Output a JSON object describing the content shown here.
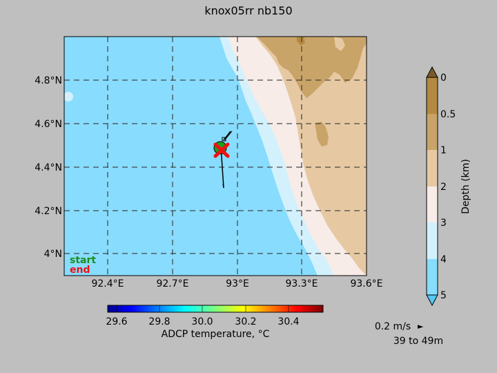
{
  "chart_data": {
    "type": "map",
    "title": "knox05rr nb150",
    "x_ticks": [
      "92.4°E",
      "92.7°E",
      "93°E",
      "93.3°E",
      "93.6°E"
    ],
    "x_tick_values": [
      92.4,
      92.7,
      93.0,
      93.3,
      93.6
    ],
    "y_ticks": [
      "4°N",
      "4.2°N",
      "4.4°N",
      "4.6°N",
      "4.8°N"
    ],
    "y_tick_values": [
      4.0,
      4.2,
      4.4,
      4.6,
      4.8
    ],
    "xlim": [
      92.2,
      93.6
    ],
    "ylim": [
      3.9,
      5.0
    ],
    "grid": true,
    "track_start_label": "start",
    "track_end_label": "end",
    "track": {
      "start": [
        92.91,
        4.5
      ],
      "end": [
        92.92,
        4.48
      ],
      "color_start": "#1aa01a",
      "color_end": "#ee1111"
    },
    "vectors": [
      {
        "lon": 92.925,
        "lat": 4.48,
        "u": 0.03,
        "v": 0.06
      },
      {
        "lon": 92.93,
        "lat": 4.52,
        "u": 0.06,
        "v": 0.06
      },
      {
        "lon": 92.925,
        "lat": 4.3,
        "u": 0.0,
        "v": 0.02
      }
    ],
    "depth_colorbar": {
      "label": "Depth (km)",
      "tick_labels": [
        "0",
        "0.5",
        "1",
        "2",
        "3",
        "4",
        "5"
      ],
      "colors_top_to_bottom": [
        "#b5893f",
        "#c9a468",
        "#e6c9a3",
        "#f7ece8",
        "#d3f1fd",
        "#88dcfd"
      ],
      "extend_top_color": "#7a5a2a",
      "extend_bottom_color": "#55c8f5"
    },
    "temperature_colorbar": {
      "label": "ADCP temperature, °C",
      "tick_labels": [
        "29.6",
        "29.8",
        "30.0",
        "30.2",
        "30.4"
      ],
      "tick_values": [
        29.6,
        29.8,
        30.0,
        30.2,
        30.4
      ],
      "range": [
        29.6,
        30.6
      ],
      "colors": [
        "#00008f",
        "#0000ff",
        "#00ffff",
        "#ffff00",
        "#ff0000",
        "#800000"
      ]
    },
    "scale_label": "0.2 m/s",
    "scale_arrow": "►",
    "depth_range_label": "39 to 49m"
  }
}
